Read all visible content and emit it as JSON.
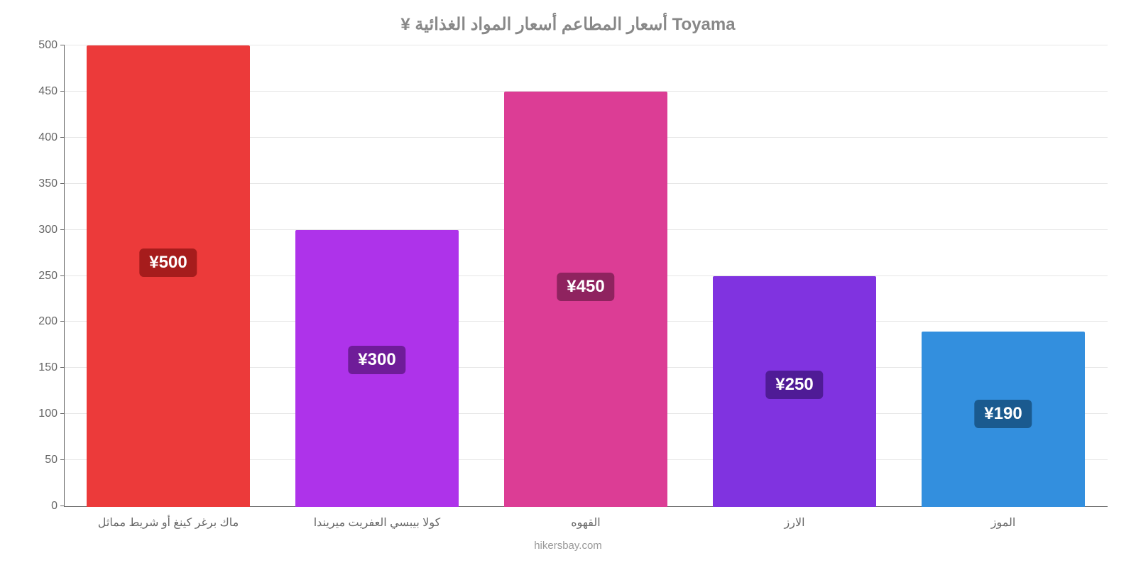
{
  "price_chart": {
    "type": "bar",
    "title": "¥ أسعار المطاعم أسعار المواد الغذائية Toyama",
    "title_color": "#888888",
    "title_fontsize": 24,
    "source": "hikersbay.com",
    "background_color": "#ffffff",
    "grid_color": "#e6e6e6",
    "axis_color": "#666666",
    "label_color": "#666666",
    "label_fontsize": 16,
    "ylim": [
      0,
      500
    ],
    "ytick_step": 50,
    "bar_width": 0.78,
    "currency_prefix": "¥",
    "badge_text_color": "#ffffff",
    "badge_fontsize": 24,
    "categories": [
      "ماك برغر كينغ أو شريط مماثل",
      "كولا بيبسي العفريت ميريندا",
      "القهوه",
      "الارز",
      "الموز"
    ],
    "values": [
      500,
      300,
      450,
      250,
      190
    ],
    "bar_colors": [
      "#ec3a3a",
      "#ae33ea",
      "#dc3d95",
      "#8033e0",
      "#338fde"
    ],
    "badge_colors": [
      "#a61c1c",
      "#6f1c99",
      "#8f235f",
      "#4f1b96",
      "#1a5a8f"
    ],
    "badge_y_fraction": 0.53
  }
}
